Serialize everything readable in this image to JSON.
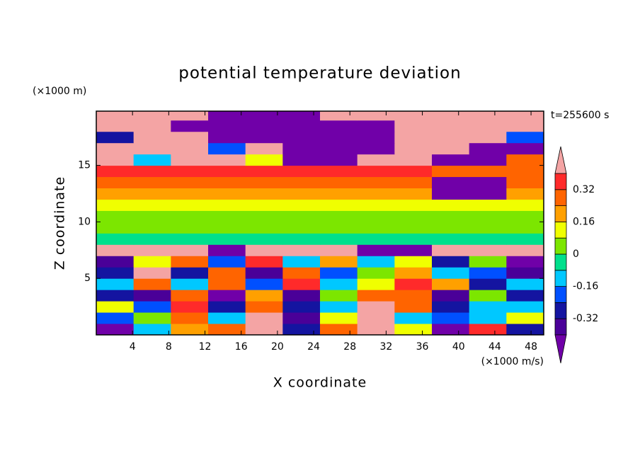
{
  "chart_data": {
    "type": "contour",
    "title": "potential temperature deviation",
    "x_label": "X coordinate",
    "y_label": "Z coordinate",
    "x_unit": "(×1000 m/s)",
    "y_unit": "(×1000 m)",
    "annotation": "t=255600 s",
    "xlim": [
      0,
      49.4
    ],
    "ylim": [
      0,
      19.8
    ],
    "xticks": [
      4,
      8,
      12,
      16,
      20,
      24,
      28,
      32,
      36,
      40,
      44,
      48
    ],
    "yticks": [
      5,
      10,
      15
    ],
    "z": [
      [
        -0.45,
        -0.1,
        0.2,
        0.3,
        0.45,
        -0.3,
        0.3,
        0.45,
        0.1,
        -0.45,
        0.35,
        -0.3
      ],
      [
        -0.2,
        0.05,
        0.3,
        -0.1,
        0.45,
        -0.35,
        0.1,
        0.45,
        -0.1,
        -0.2,
        -0.1,
        0.1
      ],
      [
        0.1,
        -0.2,
        0.35,
        -0.3,
        0.3,
        -0.3,
        -0.1,
        0.42,
        0.3,
        -0.3,
        -0.15,
        -0.1
      ],
      [
        -0.25,
        -0.36,
        0.3,
        -0.45,
        0.2,
        -0.4,
        0.0,
        0.3,
        0.25,
        -0.35,
        0.05,
        -0.3
      ],
      [
        -0.1,
        0.25,
        -0.1,
        0.3,
        -0.2,
        0.35,
        -0.1,
        0.1,
        0.35,
        0.2,
        -0.3,
        -0.1
      ],
      [
        -0.3,
        0.4,
        -0.3,
        0.25,
        -0.35,
        0.3,
        -0.2,
        0.05,
        0.2,
        -0.1,
        -0.2,
        -0.35
      ],
      [
        -0.35,
        0.1,
        0.3,
        -0.2,
        0.35,
        -0.1,
        0.2,
        -0.1,
        0.15,
        -0.3,
        0.0,
        -0.42
      ],
      [
        0.45,
        0.45,
        0.45,
        -0.45,
        0.45,
        0.45,
        0.45,
        -0.45,
        -0.45,
        0.45,
        0.45,
        0.45
      ],
      [
        -0.02,
        -0.02,
        -0.05,
        -0.02,
        -0.02,
        -0.02,
        -0.05,
        -0.02,
        -0.02,
        -0.05,
        -0.02,
        -0.02
      ],
      [
        0.03,
        0.05,
        0.02,
        0.03,
        0.05,
        0.02,
        0.03,
        0.05,
        0.02,
        0.03,
        0.05,
        0.02
      ],
      [
        0.05,
        0.06,
        0.05,
        0.04,
        0.06,
        0.05,
        0.05,
        0.06,
        0.04,
        0.05,
        0.06,
        0.05
      ],
      [
        0.1,
        0.12,
        0.1,
        0.1,
        0.12,
        0.1,
        0.1,
        0.12,
        0.1,
        0.1,
        0.12,
        0.1
      ],
      [
        0.2,
        0.18,
        0.2,
        0.2,
        0.18,
        0.2,
        0.2,
        0.18,
        0.2,
        -0.45,
        -0.45,
        0.2
      ],
      [
        0.3,
        0.28,
        0.3,
        0.3,
        0.28,
        0.3,
        0.3,
        0.28,
        0.3,
        -0.45,
        -0.45,
        0.3
      ],
      [
        0.35,
        0.36,
        0.35,
        0.35,
        0.36,
        0.35,
        0.35,
        0.36,
        0.35,
        0.3,
        0.3,
        0.3
      ],
      [
        0.45,
        -0.1,
        0.45,
        0.45,
        0.1,
        -0.45,
        -0.45,
        0.45,
        0.45,
        -0.45,
        -0.45,
        0.3
      ],
      [
        0.45,
        0.45,
        0.45,
        -0.2,
        0.45,
        -0.45,
        -0.45,
        -0.45,
        0.45,
        0.45,
        -0.45,
        -0.45
      ],
      [
        -0.3,
        0.45,
        0.45,
        -0.45,
        -0.45,
        -0.45,
        -0.45,
        -0.45,
        0.45,
        0.45,
        0.45,
        -0.2
      ],
      [
        0.45,
        0.45,
        -0.45,
        -0.45,
        -0.45,
        -0.45,
        -0.45,
        -0.45,
        0.45,
        0.45,
        0.45,
        0.45
      ],
      [
        0.45,
        0.45,
        0.45,
        -0.45,
        -0.45,
        -0.45,
        0.45,
        0.45,
        0.45,
        0.45,
        0.45,
        0.45
      ]
    ],
    "colorbar": {
      "levels": [
        -0.4,
        -0.32,
        -0.24,
        -0.16,
        -0.08,
        0,
        0.08,
        0.16,
        0.24,
        0.32,
        0.4
      ],
      "colors": [
        "#4a0098",
        "#1414a0",
        "#0050ff",
        "#00c8ff",
        "#00e08c",
        "#7ce600",
        "#f0ff00",
        "#ffa000",
        "#ff6400",
        "#ff2a2a"
      ],
      "under_color": "#7000a8",
      "over_color": "#f4a4a4",
      "ticks": [
        -0.32,
        -0.16,
        0,
        0.16,
        0.32
      ]
    }
  }
}
